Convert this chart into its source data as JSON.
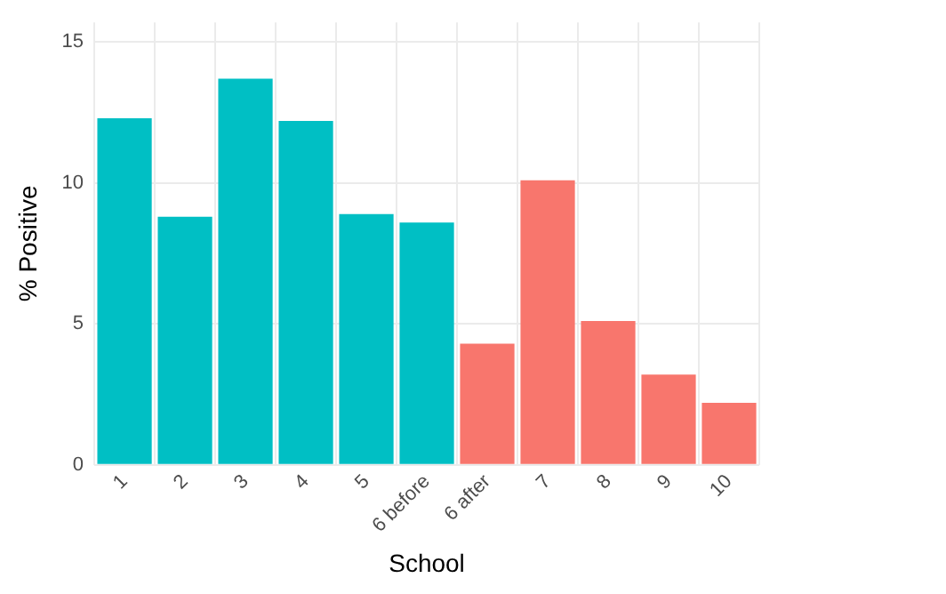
{
  "chart_data": {
    "type": "bar",
    "xlabel": "School",
    "ylabel": "% Positive",
    "categories": [
      "1",
      "2",
      "3",
      "4",
      "5",
      "6 before",
      "6 after",
      "7",
      "8",
      "9",
      "10"
    ],
    "values": [
      12.3,
      8.8,
      13.7,
      12.2,
      8.9,
      8.6,
      4.3,
      10.1,
      5.1,
      3.2,
      2.2
    ],
    "colors": [
      "#00bfc4",
      "#00bfc4",
      "#00bfc4",
      "#00bfc4",
      "#00bfc4",
      "#00bfc4",
      "#f8766d",
      "#f8766d",
      "#f8766d",
      "#f8766d",
      "#f8766d"
    ],
    "ylim": [
      0,
      15.7
    ],
    "yticks": [
      0,
      5,
      10,
      15
    ],
    "grid": true
  }
}
